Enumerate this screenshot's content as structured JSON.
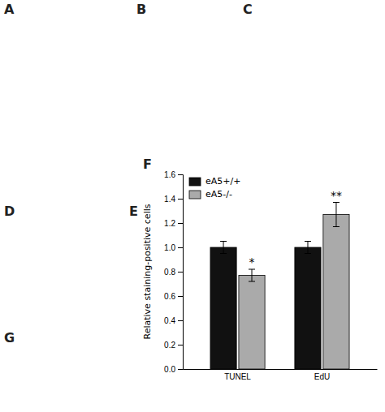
{
  "chart_data": {
    "type": "bar",
    "ylabel": "Relative staining-positive cells",
    "categories": [
      "TUNEL",
      "EdU"
    ],
    "series": [
      {
        "name": "eA5+/+",
        "color": "#111111",
        "values": [
          1.0,
          1.0
        ],
        "errors": [
          0.05,
          0.05
        ]
      },
      {
        "name": "eA5-/-",
        "color": "#aaaaaa",
        "values": [
          0.77,
          1.27
        ],
        "errors": [
          0.05,
          0.1
        ]
      }
    ],
    "ylim": [
      0.0,
      1.6
    ],
    "yticks": [
      {
        "value": 0.0,
        "label": "0.0"
      },
      {
        "value": 0.2,
        "label": "0.2"
      },
      {
        "value": 0.4,
        "label": "0.4"
      },
      {
        "value": 0.6,
        "label": "0.6"
      },
      {
        "value": 0.8,
        "label": "0.8"
      },
      {
        "value": 1.0,
        "label": "1.0"
      },
      {
        "value": 1.2,
        "label": "1.2"
      },
      {
        "value": 1.4,
        "label": "1.4"
      },
      {
        "value": 1.6,
        "label": "1.6"
      }
    ],
    "legend": "upper left",
    "annotations": [
      {
        "text": "*",
        "category": "TUNEL",
        "series": "eA5-/-"
      },
      {
        "text": "**",
        "category": "EdU",
        "series": "eA5-/-"
      }
    ],
    "panel_labels": [
      "A",
      "B",
      "C",
      "D",
      "E",
      "F",
      "G"
    ]
  }
}
